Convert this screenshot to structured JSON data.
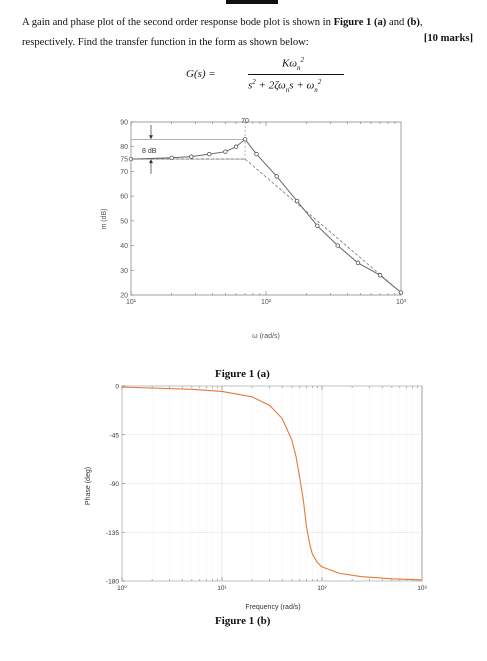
{
  "question": {
    "line1_a": "A gain and phase plot of the second order response bode plot is shown in ",
    "line1_fig": "Figure 1 (a)",
    "line1_and": " and ",
    "line1_b": "(b)",
    "line1_end": ",",
    "line2": "respectively. Find the transfer function in the form as shown below:",
    "marks": "[10 marks]"
  },
  "formula": {
    "lhs": "G(s) =",
    "numerator": "Kω",
    "num_sub": "n",
    "num_sup": "2",
    "den_s": "s",
    "den_sup": "2",
    "den_mid": " + 2ζω",
    "den_sub": "n",
    "den_s2": "s + ω",
    "den_sub2": "n",
    "den_sup2": "2"
  },
  "fig_a": {
    "caption": "Figure 1 (a)",
    "annotation_70": "70",
    "annotation_8db": "8 dB",
    "chart_data": {
      "type": "line",
      "xscale": "log",
      "xlim": [
        10,
        1000
      ],
      "ylim": [
        20,
        90
      ],
      "xlabel": "ω (rad/s)",
      "ylabel": "m (dB)",
      "y_ticks": [
        "90",
        "80",
        "75",
        "70",
        "60",
        "50",
        "40",
        "30",
        "20"
      ],
      "x_ticks": [
        "10¹",
        "10²",
        "10³"
      ],
      "series": [
        {
          "x": [
            10,
            20,
            28,
            38,
            50,
            60,
            70,
            85,
            120,
            170,
            240,
            340,
            480,
            700,
            1000
          ],
          "y": [
            75,
            75.5,
            76,
            77,
            78,
            80,
            83,
            77,
            68,
            58,
            48,
            40,
            33,
            28,
            21
          ]
        }
      ],
      "asymptotes": [
        {
          "x": [
            10,
            70
          ],
          "y": [
            75,
            75
          ]
        },
        {
          "x": [
            70,
            1000
          ],
          "y": [
            75,
            21
          ]
        }
      ]
    }
  },
  "fig_b": {
    "caption": "Figure 1 (b)",
    "chart_data": {
      "type": "line",
      "xscale": "log",
      "xlim": [
        1,
        1000
      ],
      "ylim": [
        -180,
        0
      ],
      "xlabel": "Frequency (rad/s)",
      "ylabel": "Phase (deg)",
      "y_ticks": [
        "0",
        "-45",
        "-90",
        "-135",
        "-180"
      ],
      "x_ticks": [
        "10⁰",
        "10¹",
        "10²",
        "10³"
      ],
      "series": [
        {
          "x": [
            1,
            5,
            10,
            20,
            30,
            40,
            50,
            55,
            60,
            65,
            70,
            75,
            80,
            90,
            100,
            150,
            250,
            500,
            1000
          ],
          "y": [
            -1,
            -3,
            -5,
            -10,
            -18,
            -30,
            -50,
            -65,
            -85,
            -105,
            -130,
            -145,
            -155,
            -163,
            -167,
            -173,
            -176,
            -178,
            -179
          ]
        }
      ]
    }
  }
}
